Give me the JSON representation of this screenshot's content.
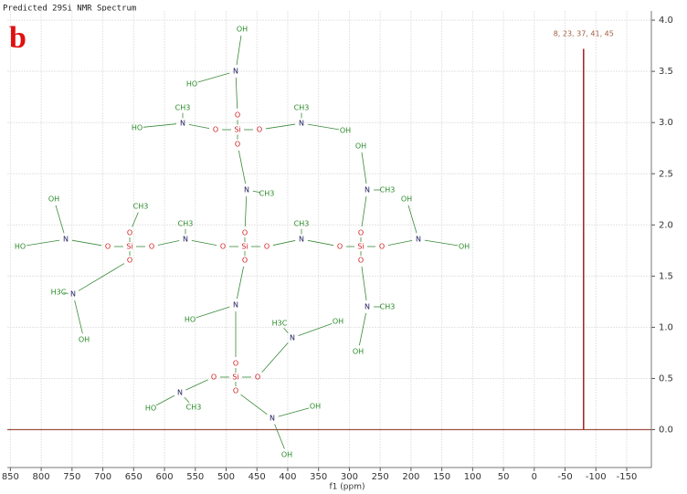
{
  "panel_label": "b",
  "chart_data": {
    "type": "spectrum",
    "title": "Predicted 29Si NMR Spectrum",
    "x_label": "f1 (ppm)",
    "x": [
      -80
    ],
    "values": [
      3.72
    ],
    "peak_labels": [
      "8, 23, 37, 41, 45"
    ],
    "color": "#a02020",
    "baseline_color": "#a05040",
    "xlim": [
      855,
      -190
    ],
    "xticks": [
      850,
      800,
      750,
      700,
      650,
      600,
      550,
      500,
      450,
      400,
      350,
      300,
      250,
      200,
      150,
      100,
      50,
      0,
      -50,
      -100,
      -150
    ],
    "ylim": [
      -0.37,
      4.09
    ],
    "yticks": [
      {
        "value": 0,
        "label": "0.0"
      },
      0.5,
      {
        "value": 1,
        "label": "1.0"
      },
      1.5,
      {
        "value": 2,
        "label": "2.0"
      },
      2.5,
      {
        "value": 3,
        "label": "3.0"
      },
      3.5,
      {
        "value": 4,
        "label": "4.0"
      }
    ],
    "grid": true
  },
  "molecule": {
    "atoms": [
      "Si",
      "O",
      "O",
      "O",
      "O",
      "N",
      "CH3",
      "Si",
      "O",
      "O",
      "O",
      "CH3",
      "N",
      "HO",
      "OH",
      "N",
      "OH",
      "N",
      "CH3",
      "Si",
      "O",
      "O",
      "O",
      "O",
      "N",
      "OH",
      "OH",
      "N",
      "CH3",
      "N",
      "CH3",
      "OH",
      "OH",
      "N",
      "CH3",
      "Si",
      "O",
      "O",
      "O",
      "O",
      "N",
      "CH3",
      "HO",
      "N",
      "CH3",
      "OH",
      "N",
      "HO",
      "OH",
      "N",
      "HO",
      "N",
      "H3C",
      "OH",
      "Si",
      "O",
      "O",
      "O",
      "O",
      "N",
      "CH3",
      "HO",
      "N",
      "OH",
      "OH",
      "O",
      "H3C"
    ]
  }
}
